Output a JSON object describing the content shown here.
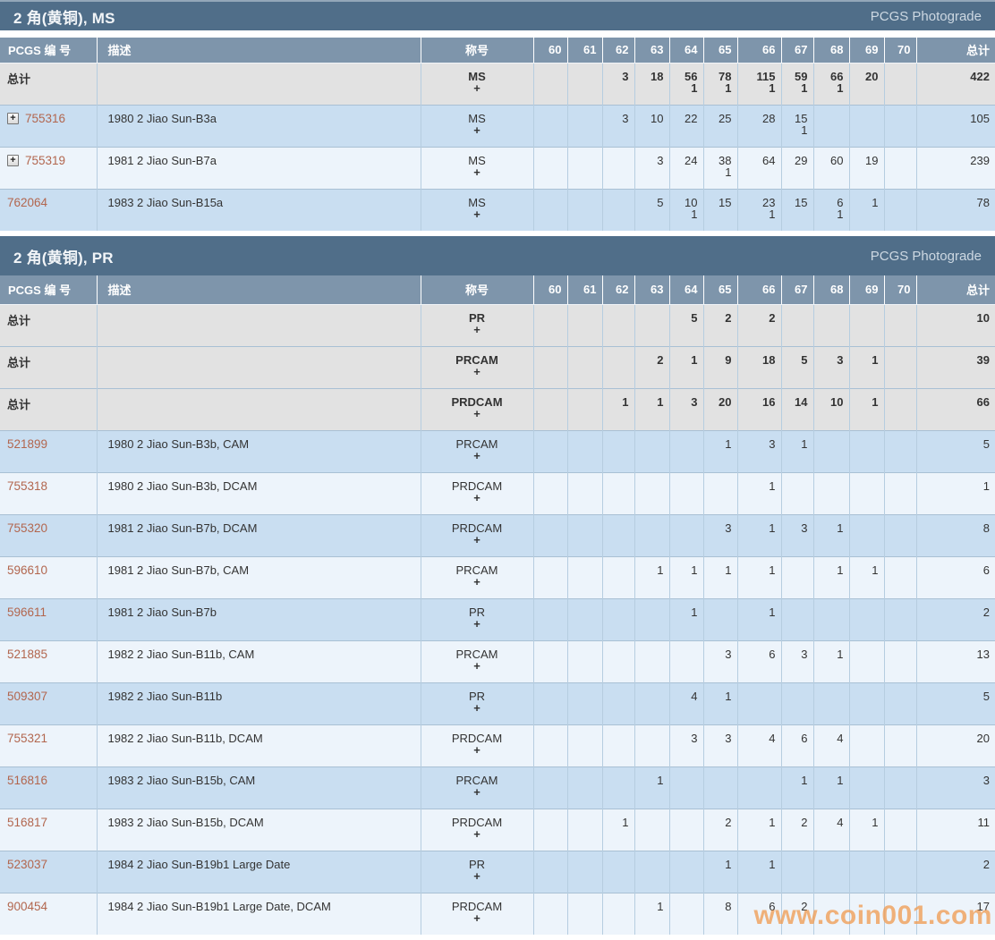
{
  "watermark": "www.coin001.com",
  "photograde_label": "PCGS Photograde",
  "total_label": "总计",
  "plus_label": "+",
  "columns": {
    "pcgs_no": "PCGS 编 号",
    "description": "描述",
    "designation": "称号",
    "grades": [
      "60",
      "61",
      "62",
      "63",
      "64",
      "65",
      "66",
      "67",
      "68",
      "69",
      "70"
    ],
    "total": "总计"
  },
  "colors": {
    "banner_bg": "#506e89",
    "header_bg": "#7e95ab",
    "row_gray": "#e2e2e2",
    "row_dark": "#c9def1",
    "row_light": "#edf4fb",
    "pcgs_number": "#b2664e",
    "watermark": "#f09d55"
  },
  "sections": [
    {
      "title": "2 角(黄铜), MS",
      "rows": [
        {
          "kind": "total",
          "shade": "gray",
          "designation": "MS",
          "cells": [
            "",
            "",
            "3",
            "18",
            "56",
            "78",
            "115",
            "59",
            "66",
            "20",
            ""
          ],
          "plus": [
            "",
            "",
            "",
            "",
            "1",
            "1",
            "1",
            "1",
            "1",
            "",
            ""
          ],
          "total": "422",
          "plus_total": ""
        },
        {
          "kind": "coin",
          "shade": "dark",
          "pcgs": "755316",
          "expandable": true,
          "description": "1980 2 Jiao Sun-B3a",
          "designation": "MS",
          "cells": [
            "",
            "",
            "3",
            "10",
            "22",
            "25",
            "28",
            "15",
            "",
            "",
            ""
          ],
          "plus": [
            "",
            "",
            "",
            "",
            "",
            "",
            "",
            "1",
            "",
            "",
            ""
          ],
          "total": "105",
          "plus_total": ""
        },
        {
          "kind": "coin",
          "shade": "light",
          "pcgs": "755319",
          "expandable": true,
          "description": "1981 2 Jiao Sun-B7a",
          "designation": "MS",
          "cells": [
            "",
            "",
            "",
            "3",
            "24",
            "38",
            "64",
            "29",
            "60",
            "19",
            ""
          ],
          "plus": [
            "",
            "",
            "",
            "",
            "",
            "1",
            "",
            "",
            "",
            "",
            ""
          ],
          "total": "239",
          "plus_total": ""
        },
        {
          "kind": "coin",
          "shade": "dark",
          "pcgs": "762064",
          "expandable": false,
          "description": "1983 2 Jiao Sun-B15a",
          "designation": "MS",
          "cells": [
            "",
            "",
            "",
            "5",
            "10",
            "15",
            "23",
            "15",
            "6",
            "1",
            ""
          ],
          "plus": [
            "",
            "",
            "",
            "",
            "1",
            "",
            "1",
            "",
            "1",
            "",
            ""
          ],
          "total": "78",
          "plus_total": ""
        }
      ]
    },
    {
      "title": "2 角(黄铜), PR",
      "rows": [
        {
          "kind": "total",
          "shade": "gray",
          "designation": "PR",
          "cells": [
            "",
            "",
            "",
            "",
            "5",
            "2",
            "2",
            "",
            "",
            "",
            ""
          ],
          "plus": [
            "",
            "",
            "",
            "",
            "",
            "",
            "",
            "",
            "",
            "",
            ""
          ],
          "total": "10",
          "plus_total": ""
        },
        {
          "kind": "total",
          "shade": "gray",
          "designation": "PRCAM",
          "cells": [
            "",
            "",
            "",
            "2",
            "1",
            "9",
            "18",
            "5",
            "3",
            "1",
            ""
          ],
          "plus": [
            "",
            "",
            "",
            "",
            "",
            "",
            "",
            "",
            "",
            "",
            ""
          ],
          "total": "39",
          "plus_total": ""
        },
        {
          "kind": "total",
          "shade": "gray",
          "designation": "PRDCAM",
          "cells": [
            "",
            "",
            "1",
            "1",
            "3",
            "20",
            "16",
            "14",
            "10",
            "1",
            ""
          ],
          "plus": [
            "",
            "",
            "",
            "",
            "",
            "",
            "",
            "",
            "",
            "",
            ""
          ],
          "total": "66",
          "plus_total": ""
        },
        {
          "kind": "coin",
          "shade": "dark",
          "pcgs": "521899",
          "expandable": false,
          "description": "1980 2 Jiao Sun-B3b, CAM",
          "designation": "PRCAM",
          "cells": [
            "",
            "",
            "",
            "",
            "",
            "1",
            "3",
            "1",
            "",
            "",
            ""
          ],
          "plus": [
            "",
            "",
            "",
            "",
            "",
            "",
            "",
            "",
            "",
            "",
            ""
          ],
          "total": "5",
          "plus_total": ""
        },
        {
          "kind": "coin",
          "shade": "light",
          "pcgs": "755318",
          "expandable": false,
          "description": "1980 2 Jiao Sun-B3b, DCAM",
          "designation": "PRDCAM",
          "cells": [
            "",
            "",
            "",
            "",
            "",
            "",
            "1",
            "",
            "",
            "",
            ""
          ],
          "plus": [
            "",
            "",
            "",
            "",
            "",
            "",
            "",
            "",
            "",
            "",
            ""
          ],
          "total": "1",
          "plus_total": ""
        },
        {
          "kind": "coin",
          "shade": "dark",
          "pcgs": "755320",
          "expandable": false,
          "description": "1981 2 Jiao Sun-B7b, DCAM",
          "designation": "PRDCAM",
          "cells": [
            "",
            "",
            "",
            "",
            "",
            "3",
            "1",
            "3",
            "1",
            "",
            ""
          ],
          "plus": [
            "",
            "",
            "",
            "",
            "",
            "",
            "",
            "",
            "",
            "",
            ""
          ],
          "total": "8",
          "plus_total": ""
        },
        {
          "kind": "coin",
          "shade": "light",
          "pcgs": "596610",
          "expandable": false,
          "description": "1981 2 Jiao Sun-B7b, CAM",
          "designation": "PRCAM",
          "cells": [
            "",
            "",
            "",
            "1",
            "1",
            "1",
            "1",
            "",
            "1",
            "1",
            ""
          ],
          "plus": [
            "",
            "",
            "",
            "",
            "",
            "",
            "",
            "",
            "",
            "",
            ""
          ],
          "total": "6",
          "plus_total": ""
        },
        {
          "kind": "coin",
          "shade": "dark",
          "pcgs": "596611",
          "expandable": false,
          "description": "1981 2 Jiao Sun-B7b",
          "designation": "PR",
          "cells": [
            "",
            "",
            "",
            "",
            "1",
            "",
            "1",
            "",
            "",
            "",
            ""
          ],
          "plus": [
            "",
            "",
            "",
            "",
            "",
            "",
            "",
            "",
            "",
            "",
            ""
          ],
          "total": "2",
          "plus_total": ""
        },
        {
          "kind": "coin",
          "shade": "light",
          "pcgs": "521885",
          "expandable": false,
          "description": "1982 2 Jiao Sun-B11b, CAM",
          "designation": "PRCAM",
          "cells": [
            "",
            "",
            "",
            "",
            "",
            "3",
            "6",
            "3",
            "1",
            "",
            ""
          ],
          "plus": [
            "",
            "",
            "",
            "",
            "",
            "",
            "",
            "",
            "",
            "",
            ""
          ],
          "total": "13",
          "plus_total": ""
        },
        {
          "kind": "coin",
          "shade": "dark",
          "pcgs": "509307",
          "expandable": false,
          "description": "1982 2 Jiao Sun-B11b",
          "designation": "PR",
          "cells": [
            "",
            "",
            "",
            "",
            "4",
            "1",
            "",
            "",
            "",
            "",
            ""
          ],
          "plus": [
            "",
            "",
            "",
            "",
            "",
            "",
            "",
            "",
            "",
            "",
            ""
          ],
          "total": "5",
          "plus_total": ""
        },
        {
          "kind": "coin",
          "shade": "light",
          "pcgs": "755321",
          "expandable": false,
          "description": "1982 2 Jiao Sun-B11b, DCAM",
          "designation": "PRDCAM",
          "cells": [
            "",
            "",
            "",
            "",
            "3",
            "3",
            "4",
            "6",
            "4",
            "",
            ""
          ],
          "plus": [
            "",
            "",
            "",
            "",
            "",
            "",
            "",
            "",
            "",
            "",
            ""
          ],
          "total": "20",
          "plus_total": ""
        },
        {
          "kind": "coin",
          "shade": "dark",
          "pcgs": "516816",
          "expandable": false,
          "description": "1983 2 Jiao Sun-B15b, CAM",
          "designation": "PRCAM",
          "cells": [
            "",
            "",
            "",
            "1",
            "",
            "",
            "",
            "1",
            "1",
            "",
            ""
          ],
          "plus": [
            "",
            "",
            "",
            "",
            "",
            "",
            "",
            "",
            "",
            "",
            ""
          ],
          "total": "3",
          "plus_total": ""
        },
        {
          "kind": "coin",
          "shade": "light",
          "pcgs": "516817",
          "expandable": false,
          "description": "1983 2 Jiao Sun-B15b, DCAM",
          "designation": "PRDCAM",
          "cells": [
            "",
            "",
            "1",
            "",
            "",
            "2",
            "1",
            "2",
            "4",
            "1",
            ""
          ],
          "plus": [
            "",
            "",
            "",
            "",
            "",
            "",
            "",
            "",
            "",
            "",
            ""
          ],
          "total": "11",
          "plus_total": ""
        },
        {
          "kind": "coin",
          "shade": "dark",
          "pcgs": "523037",
          "expandable": false,
          "description": "1984 2 Jiao Sun-B19b1 Large Date",
          "designation": "PR",
          "cells": [
            "",
            "",
            "",
            "",
            "",
            "1",
            "1",
            "",
            "",
            "",
            ""
          ],
          "plus": [
            "",
            "",
            "",
            "",
            "",
            "",
            "",
            "",
            "",
            "",
            ""
          ],
          "total": "2",
          "plus_total": ""
        },
        {
          "kind": "coin",
          "shade": "light",
          "pcgs": "900454",
          "expandable": false,
          "description": "1984 2 Jiao Sun-B19b1 Large Date, DCAM",
          "designation": "PRDCAM",
          "cells": [
            "",
            "",
            "",
            "1",
            "",
            "8",
            "6",
            "2",
            "",
            "",
            ""
          ],
          "plus": [
            "",
            "",
            "",
            "",
            "",
            "",
            "",
            "",
            "",
            "",
            ""
          ],
          "total": "17",
          "plus_total": ""
        }
      ]
    }
  ]
}
